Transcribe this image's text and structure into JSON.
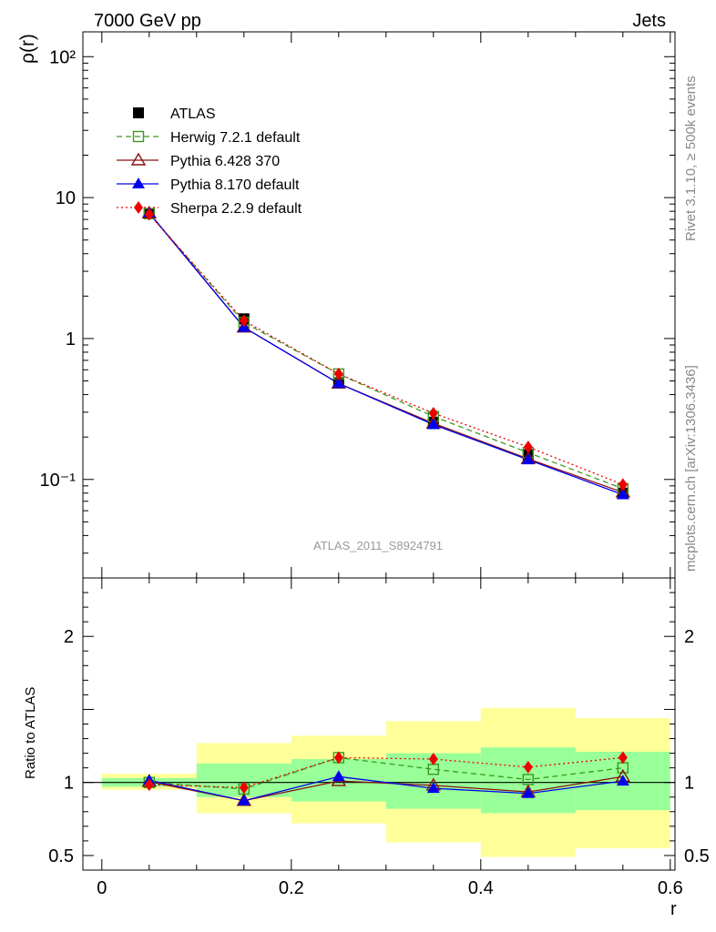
{
  "header": {
    "left": "7000 GeV pp",
    "right": "Jets"
  },
  "side_labels": {
    "rivet": "Rivet 3.1.10, ≥ 500k events",
    "mcplots": "mcplots.cern.ch [arXiv:1306.3436]"
  },
  "analysis_label": "ATLAS_2011_S8924791",
  "colors": {
    "atlas": "#000000",
    "herwig": "#3a9a1e",
    "pythia6": "#8b1010",
    "pythia8": "#0000ee",
    "sherpa": "#ee0000",
    "band_outer": "#ffff99",
    "band_inner": "#99ff99"
  },
  "chart_data": [
    {
      "type": "line",
      "panel": "main",
      "ylabel": "ρ(r)",
      "yscale": "log",
      "ylim": [
        0.02,
        150
      ],
      "xlim": [
        -0.02,
        0.605
      ],
      "ytick_labels": [
        "10⁻¹",
        "1",
        "10",
        "10²"
      ],
      "ytick_values": [
        0.1,
        1,
        10,
        100
      ],
      "x": [
        0.05,
        0.15,
        0.25,
        0.35,
        0.45,
        0.55
      ],
      "series": [
        {
          "key": "atlas",
          "name": "ATLAS",
          "marker": "square-filled",
          "line": "none",
          "values": [
            7.7,
            1.38,
            0.485,
            0.255,
            0.15,
            0.08
          ]
        },
        {
          "key": "herwig",
          "name": "Herwig 7.2.1 default",
          "marker": "square-open",
          "line": "dashed",
          "values": [
            7.7,
            1.3,
            0.56,
            0.28,
            0.155,
            0.086
          ]
        },
        {
          "key": "pythia6",
          "name": "Pythia 6.428 370",
          "marker": "triangle-open",
          "line": "solid",
          "values": [
            7.75,
            1.2,
            0.48,
            0.25,
            0.14,
            0.081
          ]
        },
        {
          "key": "pythia8",
          "name": "Pythia 8.170 default",
          "marker": "triangle-filled",
          "line": "solid",
          "values": [
            7.8,
            1.2,
            0.48,
            0.245,
            0.138,
            0.078
          ]
        },
        {
          "key": "sherpa",
          "name": "Sherpa 2.2.9 default",
          "marker": "diamond-filled",
          "line": "dotted",
          "values": [
            7.6,
            1.34,
            0.56,
            0.295,
            0.17,
            0.092
          ]
        }
      ]
    },
    {
      "type": "line",
      "panel": "ratio",
      "xlabel": "r",
      "ylabel": "Ratio to ATLAS",
      "ylim": [
        0.4,
        2.4
      ],
      "xlim": [
        -0.02,
        0.605
      ],
      "xtick_labels": [
        "0",
        "0.2",
        "0.4",
        "0.6"
      ],
      "xtick_values": [
        0,
        0.2,
        0.4,
        0.6
      ],
      "ytick_labels": [
        "0.5",
        "1",
        "2"
      ],
      "ytick_values": [
        0.5,
        1,
        2
      ],
      "bands": [
        {
          "x": [
            0.0,
            0.1
          ],
          "outer": [
            0.95,
            1.06
          ],
          "inner": [
            0.97,
            1.03
          ]
        },
        {
          "x": [
            0.1,
            0.2
          ],
          "outer": [
            0.79,
            1.27
          ],
          "inner": [
            0.9,
            1.13
          ]
        },
        {
          "x": [
            0.2,
            0.3
          ],
          "outer": [
            0.72,
            1.32
          ],
          "inner": [
            0.87,
            1.16
          ]
        },
        {
          "x": [
            0.3,
            0.4
          ],
          "outer": [
            0.59,
            1.42
          ],
          "inner": [
            0.82,
            1.2
          ]
        },
        {
          "x": [
            0.4,
            0.5
          ],
          "outer": [
            0.49,
            1.51
          ],
          "inner": [
            0.79,
            1.24
          ]
        },
        {
          "x": [
            0.5,
            0.6
          ],
          "outer": [
            0.55,
            1.44
          ],
          "inner": [
            0.81,
            1.21
          ]
        }
      ],
      "x": [
        0.05,
        0.15,
        0.25,
        0.35,
        0.45,
        0.55
      ],
      "series": [
        {
          "key": "herwig",
          "name": "Herwig 7.2.1 default",
          "marker": "square-open",
          "line": "dashed",
          "values": [
            1.0,
            0.955,
            1.17,
            1.09,
            1.02,
            1.1
          ]
        },
        {
          "key": "pythia6",
          "name": "Pythia 6.428 370",
          "marker": "triangle-open",
          "line": "solid",
          "values": [
            1.005,
            0.875,
            1.01,
            0.98,
            0.935,
            1.04
          ]
        },
        {
          "key": "pythia8",
          "name": "Pythia 8.170 default",
          "marker": "triangle-filled",
          "line": "solid",
          "values": [
            1.015,
            0.875,
            1.04,
            0.96,
            0.925,
            1.01
          ]
        },
        {
          "key": "sherpa",
          "name": "Sherpa 2.2.9 default",
          "marker": "diamond-filled",
          "line": "dotted",
          "values": [
            0.985,
            0.965,
            1.17,
            1.16,
            1.105,
            1.17
          ]
        }
      ]
    }
  ]
}
